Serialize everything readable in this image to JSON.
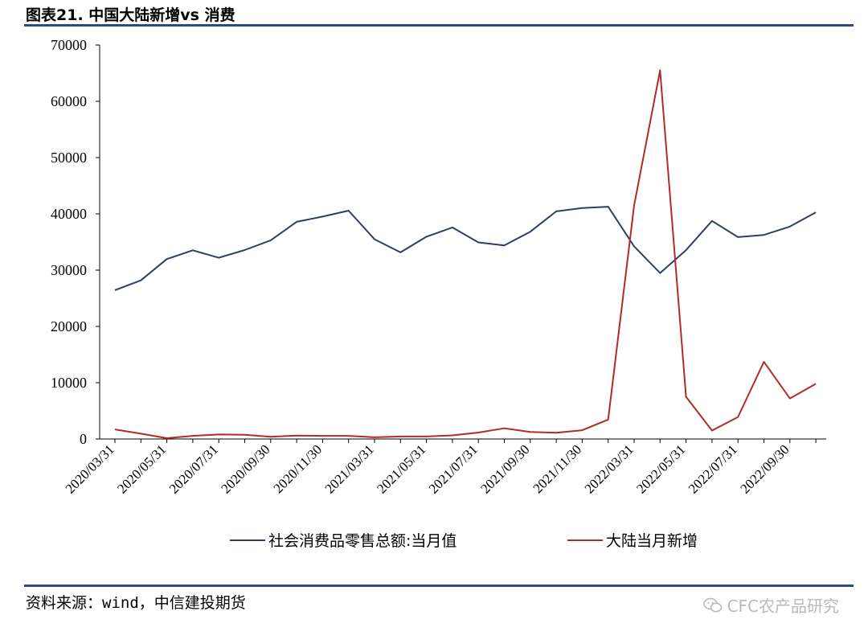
{
  "header": {
    "title": "图表21. 中国大陆新增vs 消费"
  },
  "footer": {
    "source": "资料来源：wind，中信建投期货",
    "watermark": "CFC农产品研究",
    "watermark_icon": "wechat-icon"
  },
  "colors": {
    "rule": "#2f4a7d",
    "consumption": "#2f3f64",
    "new_cases": "#b22a2a"
  },
  "chart_data": {
    "type": "line",
    "title": "",
    "xlabel": "",
    "ylabel": "",
    "ylim": [
      0,
      70000
    ],
    "yticks": [
      0,
      10000,
      20000,
      30000,
      40000,
      50000,
      60000,
      70000
    ],
    "categories": [
      "2020/03/31",
      "2020/04/30",
      "2020/05/31",
      "2020/06/30",
      "2020/07/31",
      "2020/08/31",
      "2020/09/30",
      "2020/10/31",
      "2020/11/30",
      "2020/12/31",
      "2021/03/31",
      "2021/04/30",
      "2021/05/31",
      "2021/06/30",
      "2021/07/31",
      "2021/08/31",
      "2021/09/30",
      "2021/10/31",
      "2021/11/30",
      "2021/12/31",
      "2022/03/31",
      "2022/04/30",
      "2022/05/31",
      "2022/06/30",
      "2022/07/31",
      "2022/08/31",
      "2022/09/30",
      "2022/10/31"
    ],
    "xtick_labels": [
      "2020/03/31",
      "2020/05/31",
      "2020/07/31",
      "2020/09/30",
      "2020/11/30",
      "2021/03/31",
      "2021/05/31",
      "2021/07/31",
      "2021/09/30",
      "2021/11/30",
      "2022/03/31",
      "2022/05/31",
      "2022/07/31",
      "2022/09/30"
    ],
    "grid": false,
    "legend": "bottom",
    "series": [
      {
        "name": "社会消费品零售总额:当月值",
        "values": [
          26450,
          28180,
          31970,
          33530,
          32200,
          33570,
          35300,
          38580,
          39510,
          40570,
          35480,
          33150,
          35950,
          37580,
          34930,
          34400,
          36830,
          40450,
          41040,
          41270,
          34230,
          29480,
          33550,
          38750,
          35870,
          36260,
          37750,
          40270
        ]
      },
      {
        "name": "大陆当月新增",
        "values": [
          1700,
          950,
          150,
          550,
          800,
          750,
          400,
          600,
          550,
          550,
          300,
          450,
          450,
          650,
          1150,
          1900,
          1250,
          1100,
          1550,
          3450,
          41500,
          65500,
          7500,
          1500,
          3900,
          13700,
          7200,
          9800
        ]
      }
    ]
  }
}
